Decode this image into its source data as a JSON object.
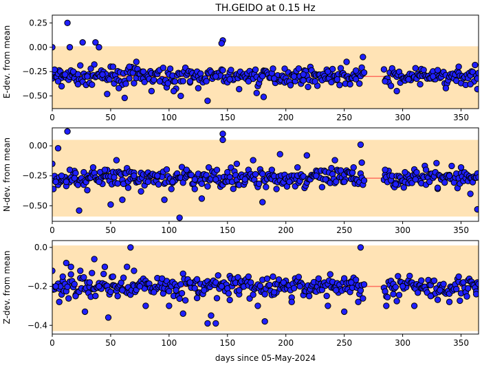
{
  "title": "TH.GEIDO at 0.15 Hz",
  "xlabel": "days since 05-May-2024",
  "colors": {
    "band": "#ffe3b5",
    "mean_line": "#ff6f5f",
    "marker_fill": "#1f1fff",
    "marker_edge": "#000000"
  },
  "chart_data": [
    {
      "type": "scatter",
      "ylabel": "E-dev. from mean",
      "xlim": [
        0,
        365
      ],
      "ylim": [
        -0.63,
        0.33
      ],
      "xticks": [
        0,
        50,
        100,
        150,
        200,
        250,
        300,
        350
      ],
      "xtick_labels": [
        "0",
        "50",
        "100",
        "150",
        "200",
        "250",
        "300",
        "350"
      ],
      "yticks": [
        0.25,
        0.0,
        -0.25,
        -0.5
      ],
      "ytick_labels": [
        "0.25",
        "0.00",
        "−0.25",
        "−0.50"
      ],
      "mean": -0.3,
      "band": [
        -0.63,
        0.01
      ],
      "gap": [
        268,
        283
      ],
      "clusters": [
        {
          "x": 13,
          "y": 0.25
        },
        {
          "x": 37,
          "y": 0.05
        },
        {
          "x": 146,
          "y": 0.07
        },
        {
          "x": 145,
          "y": 0.04
        }
      ],
      "x": [
        0,
        2,
        5,
        8,
        11,
        15,
        18,
        22,
        26,
        30,
        33,
        40,
        43,
        47,
        52,
        57,
        62,
        66,
        72,
        78,
        85,
        92,
        99,
        104,
        110,
        118,
        125,
        133,
        140,
        152,
        160,
        168,
        175,
        181,
        190,
        199,
        207,
        215,
        225,
        236,
        244,
        252,
        260,
        266,
        285,
        295,
        305,
        315,
        326,
        337,
        348,
        358,
        364
      ],
      "y": [
        0.0,
        -0.23,
        -0.35,
        -0.4,
        -0.28,
        0.0,
        -0.25,
        -0.38,
        0.05,
        -0.3,
        -0.22,
        0.0,
        -0.28,
        -0.48,
        -0.2,
        -0.42,
        -0.52,
        -0.2,
        -0.15,
        -0.25,
        -0.45,
        -0.35,
        -0.37,
        -0.45,
        -0.5,
        -0.35,
        -0.42,
        -0.55,
        -0.3,
        -0.33,
        -0.43,
        -0.35,
        -0.47,
        -0.51,
        -0.32,
        -0.22,
        -0.3,
        -0.28,
        -0.35,
        -0.25,
        -0.33,
        -0.15,
        -0.24,
        -0.1,
        -0.35,
        -0.45,
        -0.33,
        -0.38,
        -0.3,
        -0.42,
        -0.2,
        -0.38,
        -0.43
      ]
    },
    {
      "type": "scatter",
      "ylabel": "N-dev. from mean",
      "xlim": [
        0,
        365
      ],
      "ylim": [
        -0.63,
        0.15
      ],
      "xticks": [
        0,
        50,
        100,
        150,
        200,
        250,
        300,
        350
      ],
      "xtick_labels": [
        "0",
        "50",
        "100",
        "150",
        "200",
        "250",
        "300",
        "350"
      ],
      "yticks": [
        0.0,
        -0.25,
        -0.5
      ],
      "ytick_labels": [
        "0.00",
        "−0.25",
        "−0.50"
      ],
      "mean": -0.27,
      "band": [
        -0.59,
        0.05
      ],
      "gap": [
        268,
        283
      ],
      "clusters": [
        {
          "x": 13,
          "y": 0.12
        },
        {
          "x": 146,
          "y": 0.1
        },
        {
          "x": 146,
          "y": 0.05
        },
        {
          "x": 264,
          "y": 0.01
        }
      ],
      "x": [
        0,
        3,
        5,
        8,
        12,
        15,
        19,
        23,
        27,
        30,
        35,
        40,
        45,
        50,
        55,
        60,
        65,
        70,
        76,
        82,
        90,
        96,
        103,
        109,
        115,
        122,
        128,
        134,
        140,
        150,
        158,
        165,
        172,
        180,
        188,
        195,
        203,
        210,
        218,
        226,
        234,
        242,
        250,
        258,
        265,
        285,
        294,
        302,
        311,
        320,
        330,
        340,
        350,
        358,
        364
      ],
      "y": [
        -0.15,
        -0.3,
        -0.02,
        -0.25,
        -0.3,
        -0.2,
        -0.27,
        -0.54,
        -0.22,
        -0.37,
        -0.18,
        -0.3,
        -0.2,
        -0.49,
        -0.12,
        -0.45,
        -0.35,
        -0.25,
        -0.38,
        -0.3,
        -0.25,
        -0.45,
        -0.3,
        -0.6,
        -0.2,
        -0.28,
        -0.44,
        -0.18,
        -0.28,
        -0.22,
        -0.15,
        -0.28,
        -0.12,
        -0.47,
        -0.2,
        -0.07,
        -0.3,
        -0.18,
        -0.08,
        -0.25,
        -0.28,
        -0.12,
        -0.3,
        -0.18,
        -0.14,
        -0.2,
        -0.32,
        -0.22,
        -0.28,
        -0.2,
        -0.35,
        -0.25,
        -0.18,
        -0.4,
        -0.53
      ]
    },
    {
      "type": "scatter",
      "ylabel": "Z-dev. from mean",
      "xlim": [
        0,
        365
      ],
      "ylim": [
        -0.445,
        0.035
      ],
      "xticks": [
        0,
        50,
        100,
        150,
        200,
        250,
        300,
        350
      ],
      "xtick_labels": [
        "0",
        "50",
        "100",
        "150",
        "200",
        "250",
        "300",
        "350"
      ],
      "yticks": [
        0.0,
        -0.2,
        -0.4
      ],
      "ytick_labels": [
        "0.0",
        "−0.2",
        "−0.4"
      ],
      "mean": -0.2,
      "band": [
        -0.43,
        0.01
      ],
      "gap": [
        268,
        283
      ],
      "clusters": [
        {
          "x": 67,
          "y": 0.0
        },
        {
          "x": 264,
          "y": 0.0
        },
        {
          "x": 133,
          "y": -0.39
        },
        {
          "x": 140,
          "y": -0.39
        }
      ],
      "x": [
        0,
        3,
        6,
        9,
        12,
        16,
        20,
        24,
        28,
        32,
        36,
        40,
        45,
        48,
        52,
        56,
        60,
        64,
        70,
        75,
        80,
        87,
        94,
        100,
        106,
        112,
        118,
        124,
        130,
        136,
        145,
        152,
        160,
        168,
        176,
        182,
        190,
        198,
        205,
        212,
        220,
        228,
        236,
        243,
        250,
        256,
        262,
        286,
        292,
        300,
        310,
        316,
        324,
        332,
        340,
        348,
        356,
        363
      ],
      "y": [
        -0.12,
        -0.2,
        -0.28,
        -0.15,
        -0.08,
        -0.1,
        -0.25,
        -0.12,
        -0.33,
        -0.18,
        -0.06,
        -0.2,
        -0.1,
        -0.36,
        -0.15,
        -0.25,
        -0.22,
        -0.1,
        -0.12,
        -0.2,
        -0.3,
        -0.23,
        -0.16,
        -0.3,
        -0.22,
        -0.34,
        -0.18,
        -0.26,
        -0.22,
        -0.35,
        -0.2,
        -0.27,
        -0.22,
        -0.15,
        -0.3,
        -0.38,
        -0.23,
        -0.18,
        -0.28,
        -0.2,
        -0.25,
        -0.16,
        -0.3,
        -0.22,
        -0.33,
        -0.18,
        -0.28,
        -0.3,
        -0.24,
        -0.2,
        -0.3,
        -0.17,
        -0.25,
        -0.22,
        -0.28,
        -0.15,
        -0.21,
        -0.24
      ]
    }
  ]
}
